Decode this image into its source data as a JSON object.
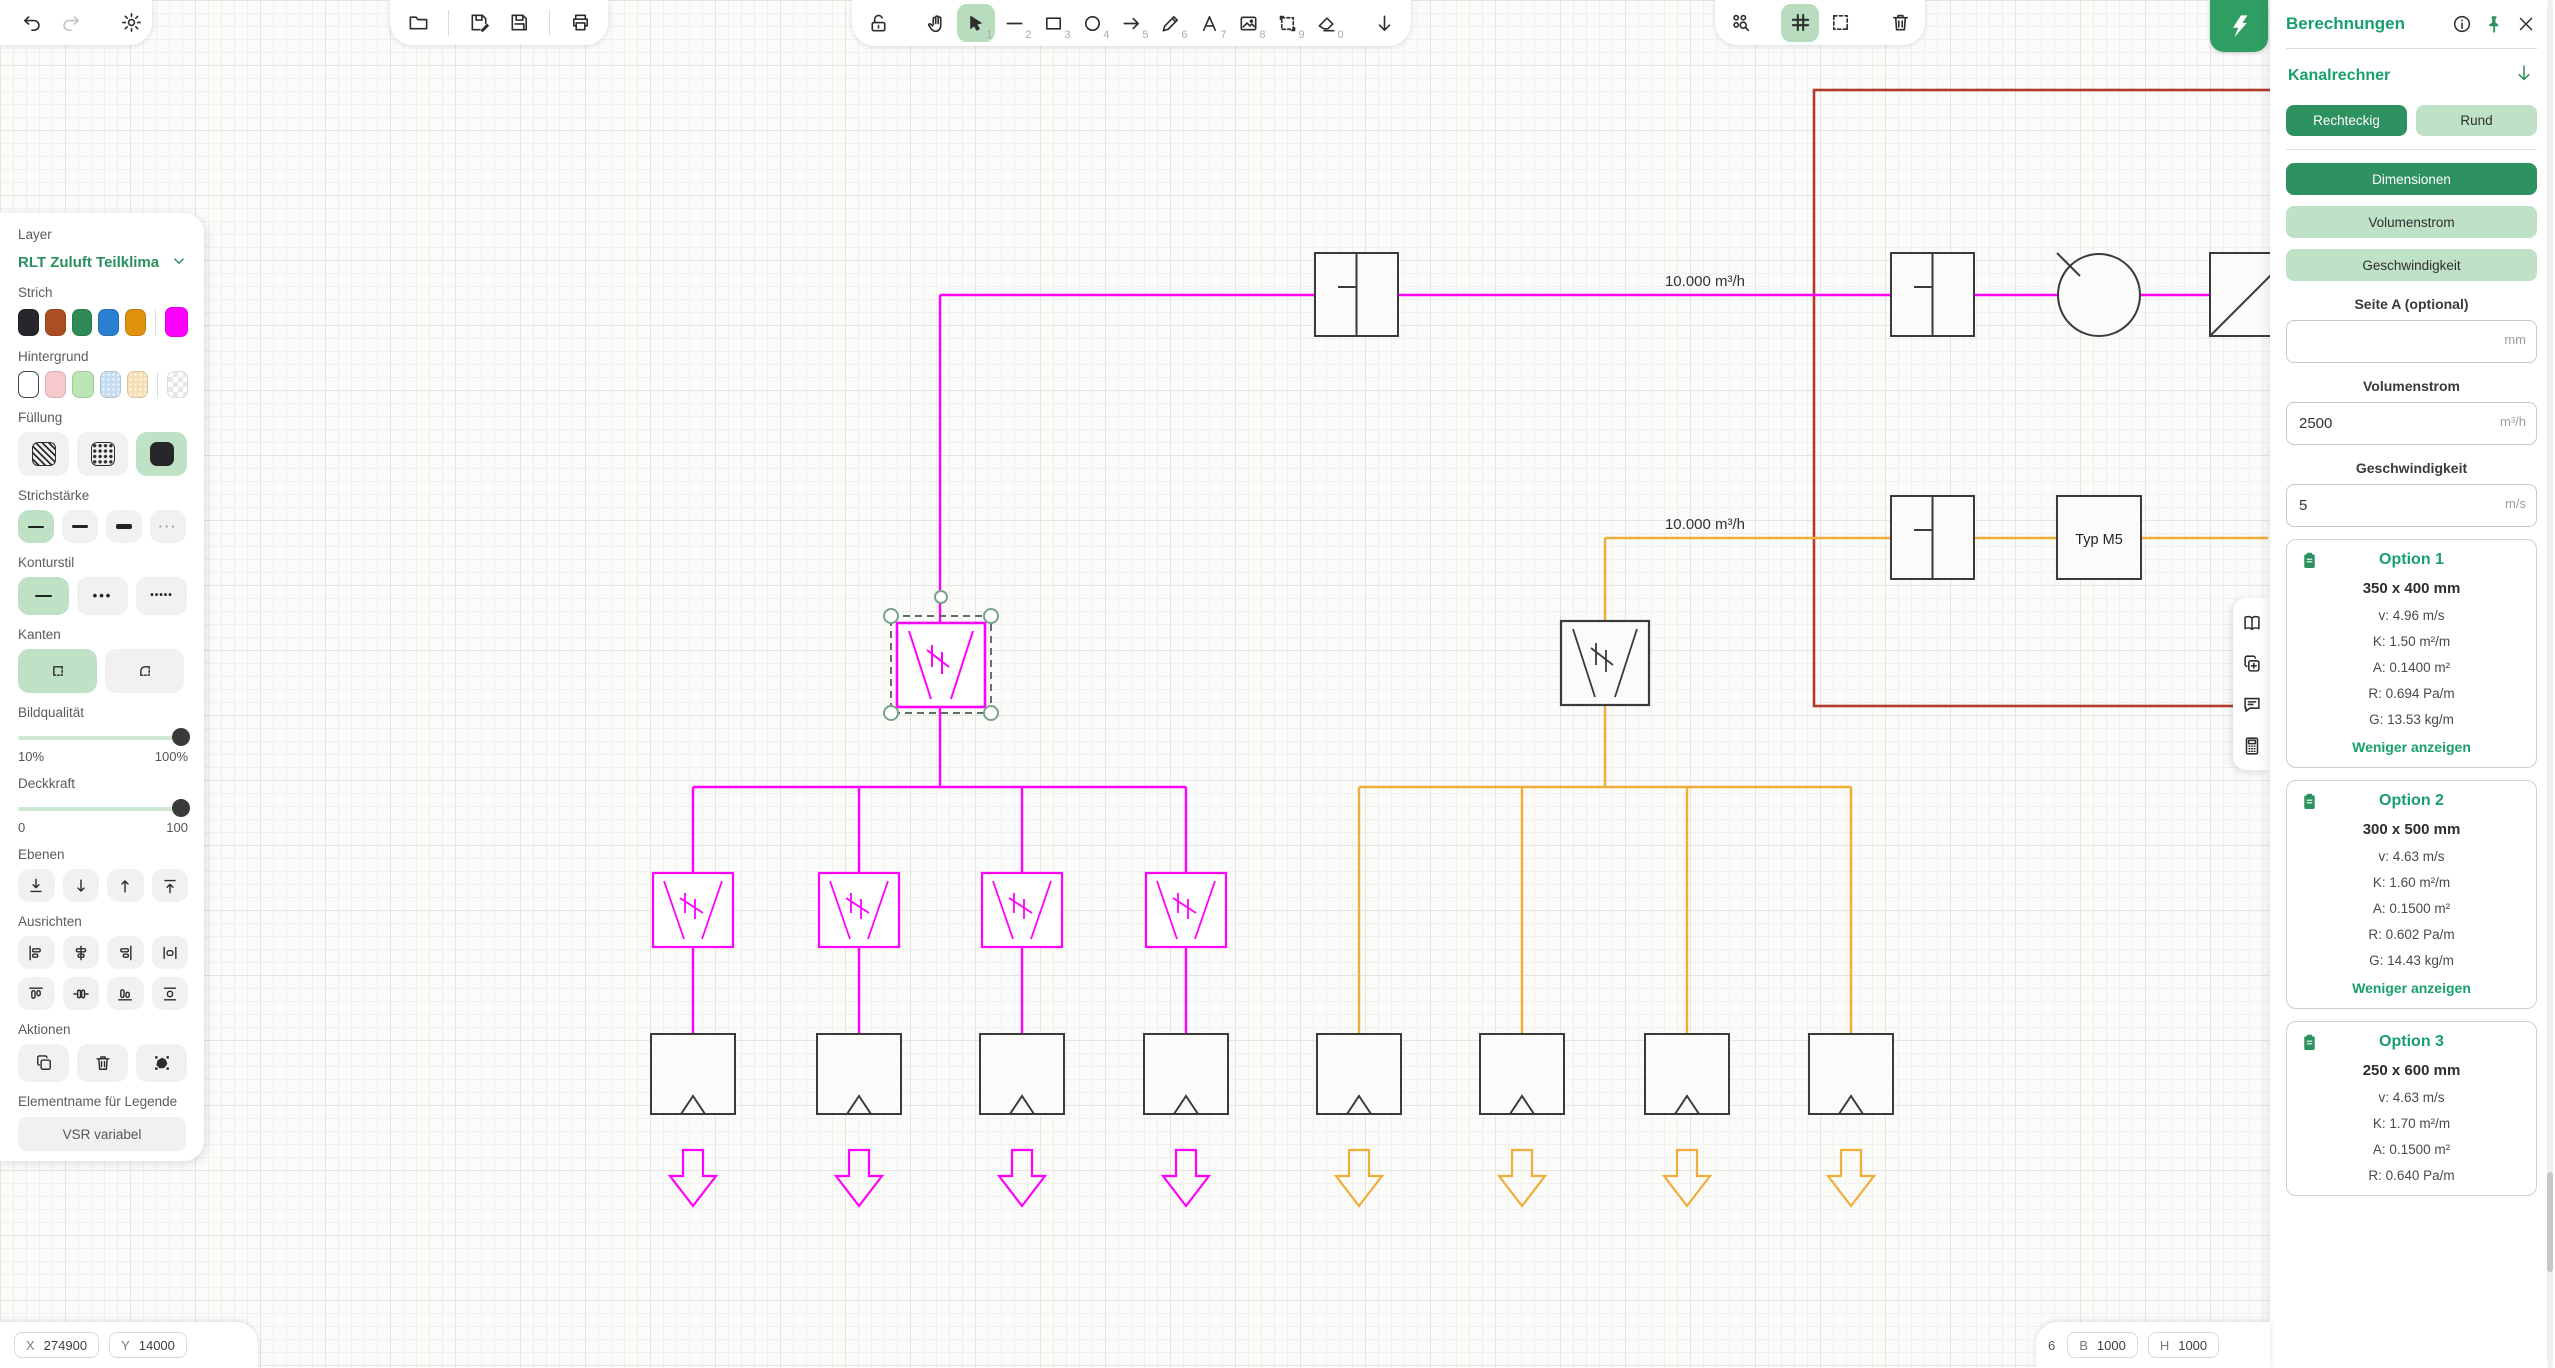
{
  "colors": {
    "accent": "#2e9160",
    "accent_light": "#bfe2c6",
    "accent_text": "#18a06c",
    "magenta": "#ff00ff",
    "orange": "#f0ad38",
    "red": "#b23b2b"
  },
  "icons": {
    "names": [
      "undo-icon",
      "redo-icon",
      "gear-icon",
      "folder-icon",
      "save-as-icon",
      "save-icon",
      "printer-icon",
      "unlock-icon",
      "hand-icon",
      "cursor-icon",
      "line-icon",
      "rectangle-icon",
      "circle-icon",
      "arrow-icon",
      "pencil-icon",
      "text-icon",
      "image-icon",
      "frame-icon",
      "eraser-icon",
      "download-icon",
      "zoom-objects-icon",
      "grid-icon",
      "marquee-icon",
      "trash-icon",
      "info-icon",
      "pin-icon",
      "close-icon",
      "chevron-down-icon",
      "arrow-down-icon",
      "clipboard-icon",
      "book-icon",
      "copy-plus-icon",
      "comment-icon",
      "calculator-icon",
      "copy-icon",
      "group-icon",
      "corner-sharp-icon",
      "corner-round-icon",
      "layer-back-icon",
      "layer-down-icon",
      "layer-up-icon",
      "layer-front-icon",
      "app-logo"
    ]
  },
  "toolbars": {
    "shortcuts": [
      "1",
      "2",
      "3",
      "4",
      "5",
      "6",
      "7",
      "8",
      "9",
      "0"
    ]
  },
  "left_panel": {
    "layer_label": "Layer",
    "layer_value": "RLT Zuluft Teilklima",
    "strich_label": "Strich",
    "stroke_colors": [
      "#26262b",
      "#a94f23",
      "#2e8b57",
      "#2b7fd0",
      "#dd910c"
    ],
    "stroke_active": "#ff00ff",
    "hintergrund_label": "Hintergrund",
    "bg_colors": [
      "#ffffff",
      "#f7c9cd",
      "#b9e6b4",
      "#c5ddf1",
      "#f6dfb2"
    ],
    "fuellung_label": "Füllung",
    "strichstaerke_label": "Strichstärke",
    "konturstil_label": "Konturstil",
    "kanten_label": "Kanten",
    "bildqualitaet": {
      "label": "Bildqualität",
      "min": "10%",
      "max": "100%",
      "value": "100%"
    },
    "deckkraft": {
      "label": "Deckkraft",
      "min": "0",
      "max": "100",
      "value": "100"
    },
    "ebenen_label": "Ebenen",
    "ausrichten_label": "Ausrichten",
    "aktionen_label": "Aktionen",
    "elementname_label": "Elementname für Legende",
    "elementname_value": "VSR variabel"
  },
  "right_panel": {
    "title": "Berechnungen",
    "section_title": "Kanalrechner",
    "shape_buttons": {
      "rect": "Rechteckig",
      "round": "Rund"
    },
    "mode_buttons": {
      "dim": "Dimensionen",
      "vol": "Volumenstrom",
      "speed": "Geschwindigkeit"
    },
    "fields": {
      "seite_a": {
        "label": "Seite A (optional)",
        "value": "",
        "unit": "mm"
      },
      "volumenstrom": {
        "label": "Volumenstrom",
        "value": "2500",
        "unit": "m³/h"
      },
      "geschwindigkeit": {
        "label": "Geschwindigkeit",
        "value": "5",
        "unit": "m/s"
      }
    },
    "options": [
      {
        "title": "Option 1",
        "size": "350 x 400 mm",
        "rows": [
          "v: 4.96 m/s",
          "K: 1.50 m²/m",
          "A: 0.1400 m²",
          "R: 0.694 Pa/m",
          "G: 13.53 kg/m"
        ],
        "link": "Weniger anzeigen"
      },
      {
        "title": "Option 2",
        "size": "300 x 500 mm",
        "rows": [
          "v: 4.63 m/s",
          "K: 1.60 m²/m",
          "A: 0.1500 m²",
          "R: 0.602 Pa/m",
          "G: 14.43 kg/m"
        ],
        "link": "Weniger anzeigen"
      },
      {
        "title": "Option 3",
        "size": "250 x 600 mm",
        "rows": [
          "v: 4.63 m/s",
          "K: 1.70 m²/m",
          "A: 0.1500 m²",
          "R: 0.640 Pa/m"
        ],
        "link": ""
      }
    ]
  },
  "canvas": {
    "flow_label_top": "10.000 m³/h",
    "flow_label_mid": "10.000 m³/h",
    "filter_label": "Typ M5"
  },
  "status_bar": {
    "x_label": "X",
    "x_value": "274900",
    "y_label": "Y",
    "y_value": "14000",
    "count": "6",
    "b_label": "B",
    "b_value": "1000",
    "h_label": "H",
    "h_value": "1000"
  }
}
